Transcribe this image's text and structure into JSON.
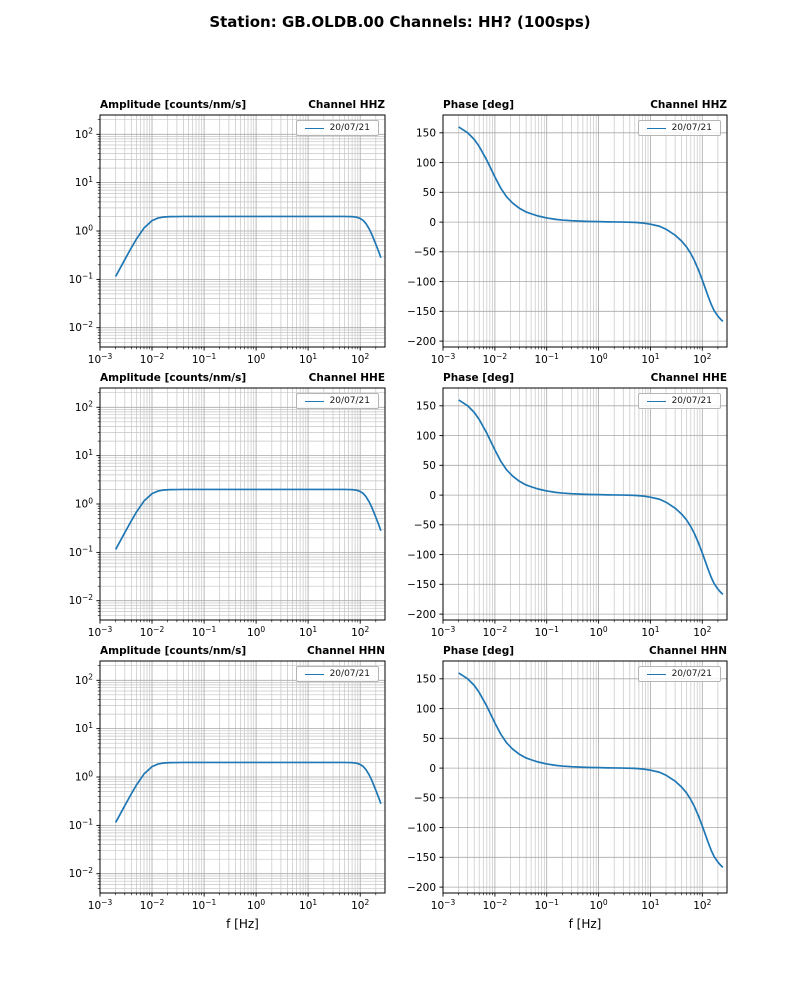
{
  "figure_title": "Station: GB.OLDB.00 Channels: HH? (100sps)",
  "x_axis_label": "f [Hz]",
  "legend_label": "20/07/21",
  "colors": {
    "line": "#1f77b4",
    "grid_major": "#a9a9a9",
    "grid_minor": "#c6c6c6",
    "spine": "#000000"
  },
  "rows": [
    {
      "channel": "HHZ",
      "amp_title": "Amplitude [counts/nm/s]",
      "phase_title": "Phase [deg]",
      "channel_title": "Channel HHZ"
    },
    {
      "channel": "HHE",
      "amp_title": "Amplitude [counts/nm/s]",
      "phase_title": "Phase [deg]",
      "channel_title": "Channel HHE"
    },
    {
      "channel": "HHN",
      "amp_title": "Amplitude [counts/nm/s]",
      "phase_title": "Phase [deg]",
      "channel_title": "Channel HHN"
    }
  ],
  "chart_data": {
    "type": "line",
    "layout": "3 rows x 2 columns; left column amplitude response (log-log), right column phase response (semilog-x); one row per channel HHZ/HHE/HHN",
    "grid": "major and minor gridlines on (both axes where log)",
    "channels": [
      "HHZ",
      "HHE",
      "HHN"
    ],
    "channels_note": "All three channels display identical response curves",
    "legend": [
      "20/07/21"
    ],
    "legend_position": "upper right",
    "x": {
      "label": "f [Hz]",
      "scale": "log",
      "lim": [
        0.001,
        300
      ],
      "ticks": [
        0.001,
        0.01,
        0.1,
        1,
        10,
        100
      ]
    },
    "amplitude_axis": {
      "title": "Amplitude [counts/nm/s]",
      "scale": "log",
      "lim": [
        0.004,
        250
      ],
      "ticks": [
        0.01,
        0.1,
        1,
        10,
        100
      ]
    },
    "phase_axis": {
      "title": "Phase [deg]",
      "scale": "linear",
      "lim": [
        -210,
        180
      ],
      "ticks": [
        -200,
        -150,
        -100,
        -50,
        0,
        50,
        100,
        150
      ]
    },
    "frequencies_hz": [
      0.002,
      0.003,
      0.004,
      0.005,
      0.007,
      0.01,
      0.013,
      0.017,
      0.022,
      0.03,
      0.04,
      0.05,
      0.07,
      0.1,
      0.15,
      0.2,
      0.3,
      0.5,
      0.7,
      1,
      1.5,
      2,
      3,
      5,
      7,
      10,
      15,
      20,
      30,
      40,
      50,
      60,
      70,
      85,
      100,
      115,
      130,
      150,
      170,
      200,
      230,
      250
    ],
    "amplitude_counts_per_nm_s": [
      0.115,
      0.257,
      0.449,
      0.677,
      1.15,
      1.64,
      1.85,
      1.95,
      1.98,
      1.99,
      2.0,
      2.0,
      2.0,
      2.0,
      2.0,
      2.0,
      2.0,
      2.0,
      2.0,
      2.0,
      2.0,
      2.0,
      2.0,
      2.0,
      2.0,
      2.0,
      2.0,
      2.0,
      2.0,
      2.0,
      2.0,
      1.99,
      1.98,
      1.93,
      1.82,
      1.64,
      1.41,
      1.09,
      0.82,
      0.53,
      0.36,
      0.28
    ],
    "phase_deg": [
      160,
      150,
      139,
      127,
      104,
      76,
      57,
      42,
      32,
      23,
      17,
      14,
      10,
      7,
      4.5,
      3.4,
      2.3,
      1.4,
      1.0,
      0.7,
      0.4,
      0.2,
      0,
      -0.5,
      -1.5,
      -3.5,
      -7,
      -12,
      -22,
      -32,
      -42,
      -53,
      -64,
      -81,
      -97,
      -112,
      -125,
      -139,
      -149,
      -158,
      -164,
      -167
    ]
  }
}
